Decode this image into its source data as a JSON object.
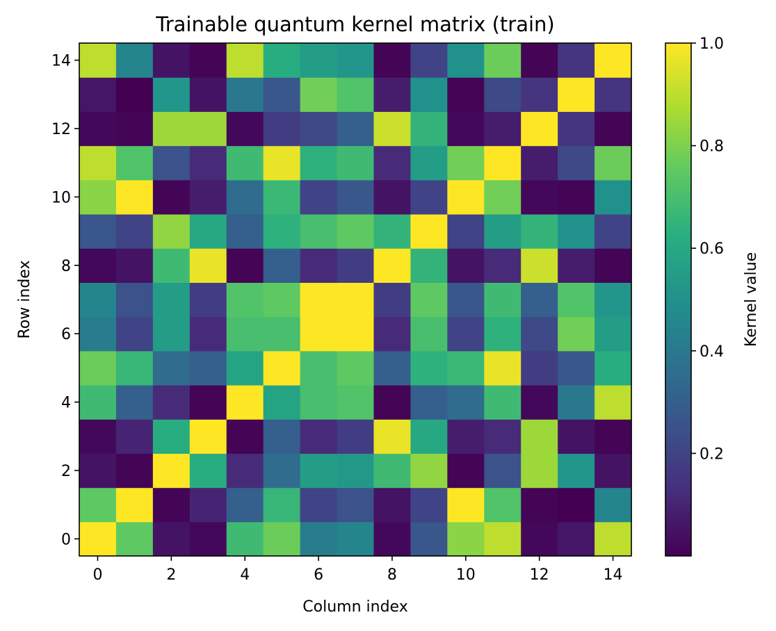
{
  "chart_data": {
    "type": "heatmap",
    "title": "Trainable quantum kernel matrix (train)",
    "xlabel": "Column index",
    "ylabel": "Row index",
    "colorbar_label": "Kernel value",
    "colormap": "viridis",
    "vmin": 0.0,
    "vmax": 1.0,
    "grid": false,
    "origin": "lower",
    "x_ticks": [
      "0",
      "2",
      "4",
      "6",
      "8",
      "10",
      "12",
      "14"
    ],
    "y_ticks": [
      "0",
      "2",
      "4",
      "6",
      "8",
      "10",
      "12",
      "14"
    ],
    "colorbar_ticks": [
      "0.2",
      "0.4",
      "0.6",
      "0.8",
      "1.0"
    ],
    "matrix": [
      [
        1.0,
        0.75,
        0.05,
        0.02,
        0.68,
        0.77,
        0.42,
        0.45,
        0.02,
        0.27,
        0.82,
        0.9,
        0.02,
        0.06,
        0.9
      ],
      [
        0.75,
        1.0,
        0.01,
        0.1,
        0.3,
        0.66,
        0.2,
        0.25,
        0.05,
        0.2,
        1.0,
        0.72,
        0.01,
        0.0,
        0.45
      ],
      [
        0.05,
        0.01,
        1.0,
        0.62,
        0.12,
        0.35,
        0.55,
        0.53,
        0.68,
        0.83,
        0.01,
        0.25,
        0.85,
        0.52,
        0.05
      ],
      [
        0.02,
        0.1,
        0.62,
        1.0,
        0.01,
        0.3,
        0.12,
        0.18,
        0.97,
        0.6,
        0.08,
        0.12,
        0.85,
        0.05,
        0.01
      ],
      [
        0.68,
        0.3,
        0.12,
        0.01,
        1.0,
        0.58,
        0.7,
        0.72,
        0.01,
        0.3,
        0.35,
        0.68,
        0.02,
        0.4,
        0.9
      ],
      [
        0.77,
        0.66,
        0.35,
        0.3,
        0.58,
        1.0,
        0.7,
        0.75,
        0.3,
        0.64,
        0.67,
        0.97,
        0.18,
        0.27,
        0.62
      ],
      [
        0.42,
        0.2,
        0.55,
        0.12,
        0.7,
        0.7,
        1.0,
        1.0,
        0.12,
        0.7,
        0.2,
        0.64,
        0.22,
        0.78,
        0.55
      ],
      [
        0.45,
        0.25,
        0.55,
        0.18,
        0.72,
        0.75,
        1.0,
        1.0,
        0.18,
        0.75,
        0.27,
        0.68,
        0.3,
        0.72,
        0.52
      ],
      [
        0.02,
        0.05,
        0.68,
        0.97,
        0.01,
        0.3,
        0.12,
        0.18,
        1.0,
        0.65,
        0.05,
        0.12,
        0.92,
        0.08,
        0.01
      ],
      [
        0.27,
        0.2,
        0.83,
        0.6,
        0.3,
        0.64,
        0.7,
        0.75,
        0.65,
        1.0,
        0.2,
        0.55,
        0.65,
        0.5,
        0.2
      ],
      [
        0.82,
        1.0,
        0.01,
        0.08,
        0.35,
        0.67,
        0.2,
        0.27,
        0.05,
        0.2,
        1.0,
        0.78,
        0.02,
        0.01,
        0.5
      ],
      [
        0.9,
        0.72,
        0.25,
        0.12,
        0.68,
        0.97,
        0.64,
        0.68,
        0.12,
        0.55,
        0.78,
        1.0,
        0.08,
        0.22,
        0.77
      ],
      [
        0.02,
        0.01,
        0.85,
        0.85,
        0.02,
        0.18,
        0.22,
        0.3,
        0.92,
        0.65,
        0.02,
        0.08,
        1.0,
        0.15,
        0.01
      ],
      [
        0.06,
        0.0,
        0.52,
        0.05,
        0.4,
        0.27,
        0.78,
        0.72,
        0.08,
        0.5,
        0.01,
        0.22,
        0.15,
        1.0,
        0.15
      ],
      [
        0.9,
        0.45,
        0.05,
        0.01,
        0.9,
        0.62,
        0.55,
        0.52,
        0.01,
        0.2,
        0.5,
        0.77,
        0.01,
        0.15,
        1.0
      ]
    ]
  }
}
